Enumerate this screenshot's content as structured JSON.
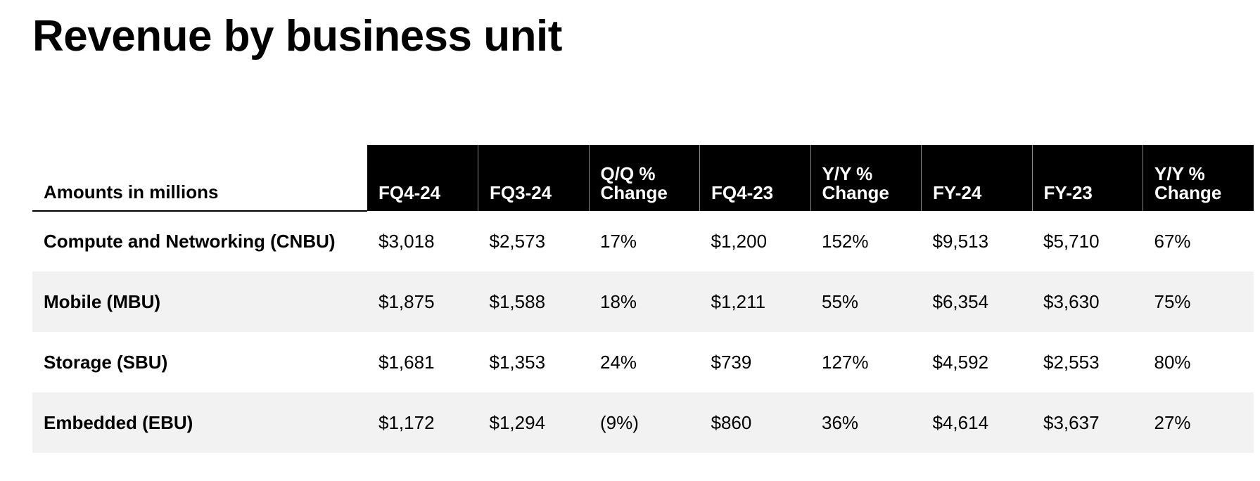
{
  "title": "Revenue by business unit",
  "table": {
    "label_header": "Amounts in millions",
    "columns": [
      {
        "line1": "FQ4-24",
        "line2": ""
      },
      {
        "line1": "FQ3-24",
        "line2": ""
      },
      {
        "line1": "Q/Q %",
        "line2": "Change"
      },
      {
        "line1": "FQ4-23",
        "line2": ""
      },
      {
        "line1": "Y/Y %",
        "line2": "Change"
      },
      {
        "line1": "FY-24",
        "line2": ""
      },
      {
        "line1": "FY-23",
        "line2": ""
      },
      {
        "line1": "Y/Y %",
        "line2": "Change"
      }
    ],
    "rows": [
      {
        "label": "Compute and Networking (CNBU)",
        "values": [
          "$3,018",
          "$2,573",
          "17%",
          "$1,200",
          "152%",
          "$9,513",
          "$5,710",
          "67%"
        ]
      },
      {
        "label": "Mobile (MBU)",
        "values": [
          "$1,875",
          "$1,588",
          "18%",
          "$1,211",
          "55%",
          "$6,354",
          "$3,630",
          "75%"
        ]
      },
      {
        "label": "Storage (SBU)",
        "values": [
          "$1,681",
          "$1,353",
          "24%",
          "$739",
          "127%",
          "$4,592",
          "$2,553",
          "80%"
        ]
      },
      {
        "label": "Embedded (EBU)",
        "values": [
          "$1,172",
          "$1,294",
          "(9%)",
          "$860",
          "36%",
          "$4,614",
          "$3,637",
          "27%"
        ]
      }
    ]
  },
  "colors": {
    "header_background": "#000000",
    "header_text": "#ffffff",
    "shaded_row": "#f2f2f2"
  }
}
